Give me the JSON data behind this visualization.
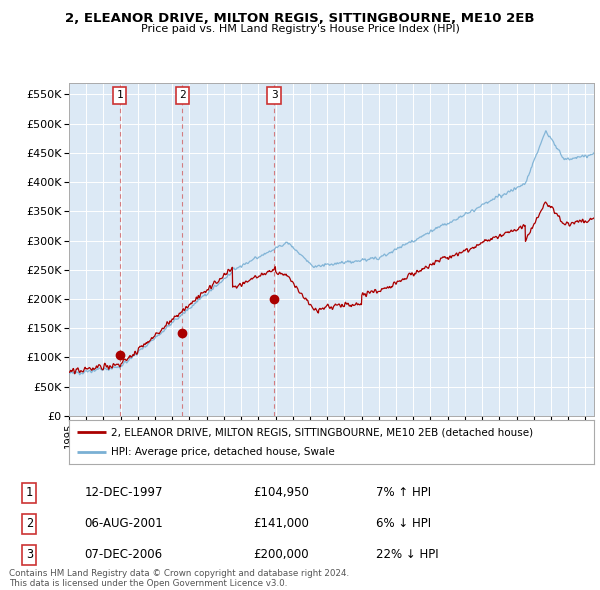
{
  "title": "2, ELEANOR DRIVE, MILTON REGIS, SITTINGBOURNE, ME10 2EB",
  "subtitle": "Price paid vs. HM Land Registry's House Price Index (HPI)",
  "background_color": "#dce9f5",
  "hpi_color": "#7ab0d4",
  "price_color": "#aa0000",
  "ylim": [
    0,
    570000
  ],
  "yticks": [
    0,
    50000,
    100000,
    150000,
    200000,
    250000,
    300000,
    350000,
    400000,
    450000,
    500000,
    550000
  ],
  "sale_dates": [
    1997.95,
    2001.59,
    2006.92
  ],
  "sale_prices": [
    104950,
    141000,
    200000
  ],
  "sale_labels": [
    "1",
    "2",
    "3"
  ],
  "legend_line1": "2, ELEANOR DRIVE, MILTON REGIS, SITTINGBOURNE, ME10 2EB (detached house)",
  "legend_line2": "HPI: Average price, detached house, Swale",
  "table_data": [
    [
      "1",
      "12-DEC-1997",
      "£104,950",
      "7% ↑ HPI"
    ],
    [
      "2",
      "06-AUG-2001",
      "£141,000",
      "6% ↓ HPI"
    ],
    [
      "3",
      "07-DEC-2006",
      "£200,000",
      "22% ↓ HPI"
    ]
  ],
  "footnote": "Contains HM Land Registry data © Crown copyright and database right 2024.\nThis data is licensed under the Open Government Licence v3.0.",
  "xmin": 1995.0,
  "xmax": 2025.5
}
